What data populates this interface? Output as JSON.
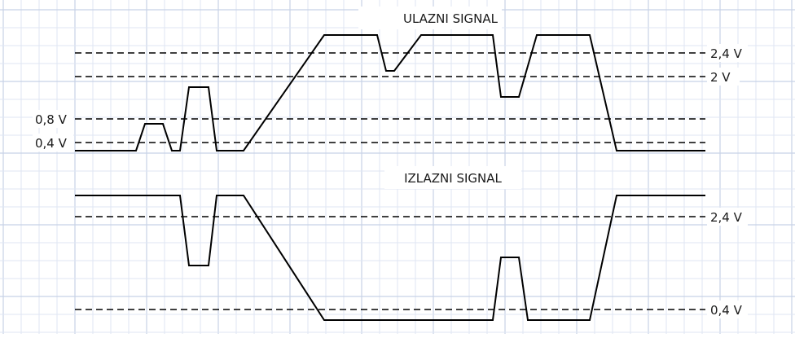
{
  "input_signal": {
    "title": "ULAZNI SIGNAL",
    "levels": [
      {
        "id": "in-2.4",
        "label": "2,4 V",
        "side": "right"
      },
      {
        "id": "in-2",
        "label": "2 V",
        "side": "right"
      },
      {
        "id": "in-0.8",
        "label": "0,8 V",
        "side": "left"
      },
      {
        "id": "in-0.4",
        "label": "0,4 V",
        "side": "left"
      }
    ]
  },
  "output_signal": {
    "title": "IZLAZNI SIGNAL",
    "levels": [
      {
        "id": "out-2.4",
        "label": "2,4 V",
        "side": "right"
      },
      {
        "id": "out-0.4",
        "label": "0,4 V",
        "side": "right"
      }
    ]
  }
}
